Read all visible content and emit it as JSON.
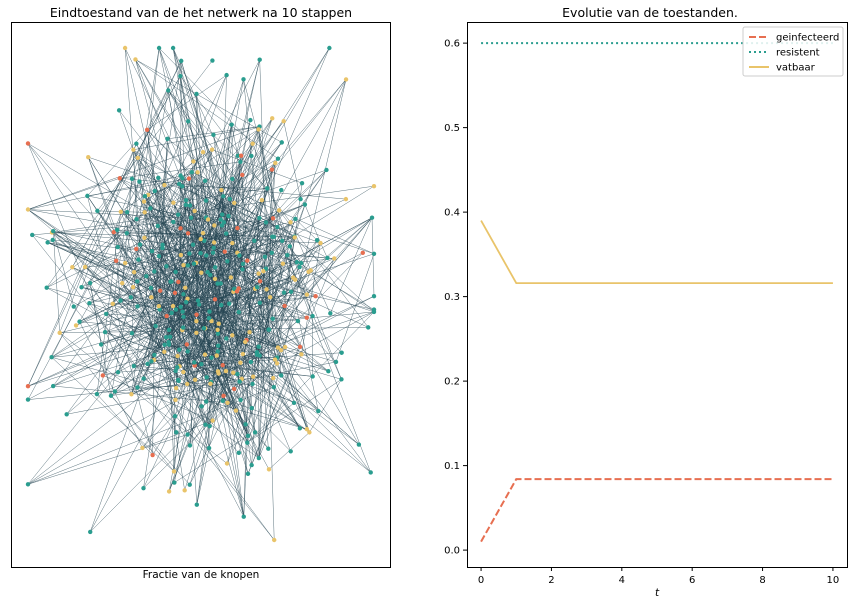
{
  "left_panel": {
    "title": "Eindtoestand van de het netwerk na 10 stappen",
    "xlabel": "Fractie van de knopen",
    "node_colors": {
      "resistent": "#2a9d8f",
      "vatbaar": "#e9c46a",
      "geinfecteerd": "#e76f51"
    },
    "edge_color": "#264653"
  },
  "chart_data": {
    "type": "line",
    "title": "Evolutie van de toestanden.",
    "xlabel": "t",
    "ylabel": "",
    "xlim": [
      -0.4,
      10.4
    ],
    "ylim": [
      -0.02,
      0.625
    ],
    "xticks": [
      0,
      2,
      4,
      6,
      8,
      10
    ],
    "yticks": [
      0.0,
      0.1,
      0.2,
      0.3,
      0.4,
      0.5,
      0.6
    ],
    "x": [
      0,
      1,
      2,
      3,
      4,
      5,
      6,
      7,
      8,
      9,
      10
    ],
    "series": [
      {
        "name": "geinfecteerd",
        "color": "#e76f51",
        "style": "dashed",
        "values": [
          0.01,
          0.084,
          0.084,
          0.084,
          0.084,
          0.084,
          0.084,
          0.084,
          0.084,
          0.084,
          0.084
        ]
      },
      {
        "name": "resistent",
        "color": "#2a9d8f",
        "style": "dotted",
        "values": [
          0.6,
          0.6,
          0.6,
          0.6,
          0.6,
          0.6,
          0.6,
          0.6,
          0.6,
          0.6,
          0.6
        ]
      },
      {
        "name": "vatbaar",
        "color": "#e9c46a",
        "style": "solid",
        "values": [
          0.39,
          0.316,
          0.316,
          0.316,
          0.316,
          0.316,
          0.316,
          0.316,
          0.316,
          0.316,
          0.316
        ]
      }
    ],
    "legend": {
      "location": "top-right"
    }
  }
}
